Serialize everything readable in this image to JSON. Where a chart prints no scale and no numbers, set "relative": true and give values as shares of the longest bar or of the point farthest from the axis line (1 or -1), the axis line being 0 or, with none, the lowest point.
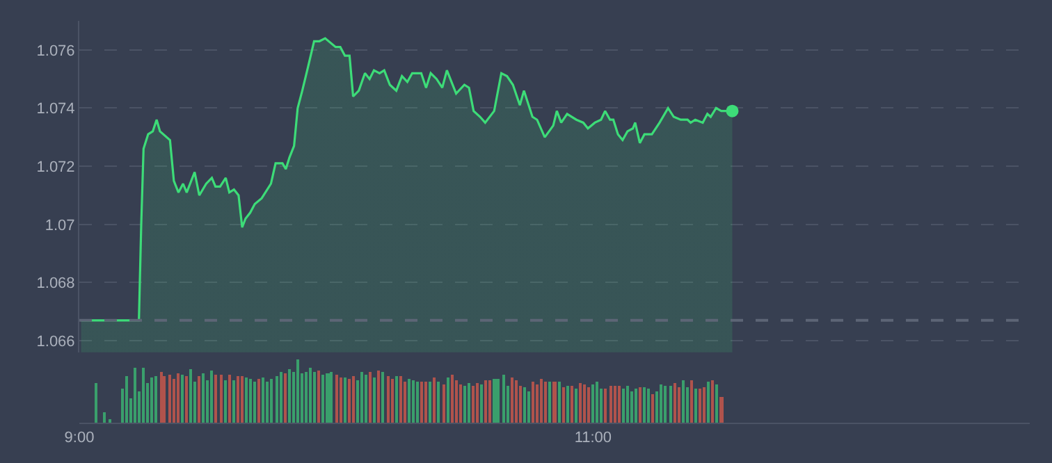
{
  "chart_data": [
    {
      "type": "area",
      "xlim": [
        9,
        12.7
      ],
      "ylim": [
        1.0656,
        1.077
      ],
      "yticks": [
        1.066,
        1.068,
        1.07,
        1.072,
        1.074,
        1.076
      ],
      "grid": "y",
      "tick_labels": "y",
      "ref_lines": [
        {
          "axis": "y",
          "value": 1.0667,
          "color": "#5d6576",
          "line_style": "dashed"
        }
      ],
      "series": [
        {
          "type": "area",
          "color": "#3ddc78",
          "x": [
            9.007,
            9.232,
            9.241,
            9.25,
            9.268,
            9.286,
            9.301,
            9.314,
            9.353,
            9.368,
            9.386,
            9.404,
            9.418,
            9.449,
            9.467,
            9.494,
            9.516,
            9.53,
            9.548,
            9.57,
            9.584,
            9.602,
            9.62,
            9.634,
            9.647,
            9.665,
            9.683,
            9.71,
            9.746,
            9.764,
            9.791,
            9.804,
            9.818,
            9.836,
            9.85,
            9.868,
            9.89,
            9.914,
            9.935,
            9.957,
            9.998,
            10.016,
            10.034,
            10.052,
            10.066,
            10.088,
            10.112,
            10.13,
            10.147,
            10.169,
            10.187,
            10.209,
            10.234,
            10.256,
            10.277,
            10.296,
            10.331,
            10.35,
            10.368,
            10.391,
            10.413,
            10.431,
            10.467,
            10.499,
            10.517,
            10.535,
            10.56,
            10.58,
            10.615,
            10.643,
            10.665,
            10.688,
            10.715,
            10.731,
            10.764,
            10.782,
            10.812,
            10.845,
            10.859,
            10.876,
            10.899,
            10.935,
            10.962,
            10.98,
            11.007,
            11.031,
            11.047,
            11.066,
            11.079,
            11.097,
            11.115,
            11.134,
            11.155,
            11.164,
            11.182,
            11.2,
            11.229,
            11.259,
            11.292,
            11.314,
            11.341,
            11.368,
            11.38,
            11.398,
            11.427,
            11.445,
            11.458,
            11.479,
            11.499,
            11.542
          ],
          "values": [
            1.0667,
            1.0667,
            1.07,
            1.0726,
            1.0731,
            1.0732,
            1.0736,
            1.0732,
            1.0729,
            1.0715,
            1.0711,
            1.0714,
            1.0711,
            1.0718,
            1.071,
            1.0714,
            1.0716,
            1.0713,
            1.0713,
            1.0716,
            1.0711,
            1.0712,
            1.071,
            1.0699,
            1.0702,
            1.0704,
            1.0707,
            1.0709,
            1.0714,
            1.0721,
            1.0721,
            1.0719,
            1.0723,
            1.0727,
            1.074,
            1.0746,
            1.0754,
            1.0763,
            1.0763,
            1.0764,
            1.0761,
            1.0761,
            1.0758,
            1.0758,
            1.0744,
            1.0746,
            1.0752,
            1.075,
            1.0753,
            1.0752,
            1.0753,
            1.0748,
            1.0746,
            1.0751,
            1.0749,
            1.0752,
            1.0752,
            1.0747,
            1.0752,
            1.075,
            1.0747,
            1.0753,
            1.0745,
            1.0748,
            1.0747,
            1.0739,
            1.0737,
            1.0735,
            1.0739,
            1.0752,
            1.0751,
            1.0748,
            1.0741,
            1.0746,
            1.0737,
            1.0736,
            1.073,
            1.0734,
            1.0739,
            1.0735,
            1.0738,
            1.0736,
            1.0735,
            1.0733,
            1.0735,
            1.0736,
            1.0739,
            1.0736,
            1.0736,
            1.0731,
            1.0729,
            1.0732,
            1.0733,
            1.0735,
            1.0728,
            1.0731,
            1.0731,
            1.0735,
            1.074,
            1.0737,
            1.0736,
            1.0736,
            1.0735,
            1.0736,
            1.0735,
            1.0738,
            1.0737,
            1.074,
            1.0739,
            1.0739
          ]
        },
        {
          "type": "scatter",
          "color": "#3ddc78",
          "marker": "circle",
          "x": [
            11.542
          ],
          "values": [
            1.0739
          ]
        }
      ]
    },
    {
      "type": "bar",
      "relative": true,
      "xlim": [
        9,
        12.7
      ],
      "xticks": [
        {
          "value": 9,
          "label": "9:00"
        },
        {
          "value": 11,
          "label": "11:00"
        }
      ],
      "tick_labels": "x",
      "x": [
        9.067,
        9.1,
        9.117,
        9.167,
        9.183,
        9.2,
        9.217,
        9.233,
        9.25,
        9.267,
        9.283,
        9.3,
        9.317,
        9.333,
        9.35,
        9.367,
        9.383,
        9.4,
        9.417,
        9.433,
        9.45,
        9.467,
        9.483,
        9.5,
        9.517,
        9.533,
        9.55,
        9.567,
        9.583,
        9.6,
        9.617,
        9.633,
        9.65,
        9.667,
        9.683,
        9.7,
        9.717,
        9.733,
        9.75,
        9.767,
        9.783,
        9.8,
        9.817,
        9.833,
        9.85,
        9.867,
        9.883,
        9.9,
        9.917,
        9.933,
        9.95,
        9.967,
        9.983,
        10,
        10.017,
        10.033,
        10.05,
        10.067,
        10.083,
        10.1,
        10.117,
        10.133,
        10.15,
        10.167,
        10.183,
        10.2,
        10.217,
        10.233,
        10.25,
        10.267,
        10.283,
        10.3,
        10.317,
        10.333,
        10.35,
        10.367,
        10.383,
        10.4,
        10.417,
        10.433,
        10.45,
        10.467,
        10.483,
        10.5,
        10.517,
        10.533,
        10.55,
        10.567,
        10.583,
        10.6,
        10.617,
        10.633,
        10.65,
        10.667,
        10.683,
        10.7,
        10.717,
        10.733,
        10.75,
        10.767,
        10.783,
        10.8,
        10.817,
        10.833,
        10.85,
        10.867,
        10.883,
        10.9,
        10.917,
        10.933,
        10.95,
        10.967,
        10.983,
        11,
        11.017,
        11.033,
        11.05,
        11.067,
        11.083,
        11.1,
        11.117,
        11.133,
        11.15,
        11.167,
        11.183,
        11.2,
        11.217,
        11.233,
        11.25,
        11.267,
        11.283,
        11.3,
        11.317,
        11.333,
        11.35,
        11.367,
        11.383,
        11.4,
        11.417,
        11.433,
        11.45,
        11.467,
        11.483,
        11.5
      ],
      "values": [
        0.64,
        0.17,
        0.07,
        0.54,
        0.74,
        0.38,
        0.88,
        0.5,
        0.88,
        0.64,
        0.72,
        0.74,
        0.82,
        0.74,
        0.76,
        0.7,
        0.78,
        0.76,
        0.74,
        0.86,
        0.66,
        0.74,
        0.78,
        0.68,
        0.84,
        0.76,
        0.76,
        0.68,
        0.76,
        0.68,
        0.74,
        0.74,
        0.72,
        0.7,
        0.66,
        0.7,
        0.72,
        0.66,
        0.7,
        0.74,
        0.82,
        0.78,
        0.86,
        0.8,
        1.0,
        0.78,
        0.82,
        0.88,
        0.82,
        0.84,
        0.76,
        0.78,
        0.8,
        0.76,
        0.72,
        0.72,
        0.7,
        0.74,
        0.68,
        0.82,
        0.76,
        0.8,
        0.72,
        0.84,
        0.8,
        0.74,
        0.7,
        0.74,
        0.74,
        0.66,
        0.7,
        0.68,
        0.66,
        0.66,
        0.66,
        0.66,
        0.72,
        0.66,
        0.62,
        0.72,
        0.76,
        0.68,
        0.62,
        0.6,
        0.64,
        0.58,
        0.64,
        0.62,
        0.68,
        0.68,
        0.7,
        0.7,
        0.76,
        0.6,
        0.72,
        0.68,
        0.58,
        0.56,
        0.5,
        0.66,
        0.62,
        0.7,
        0.66,
        0.66,
        0.66,
        0.66,
        0.56,
        0.58,
        0.6,
        0.54,
        0.64,
        0.62,
        0.56,
        0.62,
        0.66,
        0.54,
        0.54,
        0.6,
        0.6,
        0.6,
        0.54,
        0.58,
        0.5,
        0.54,
        0.56,
        0.56,
        0.54,
        0.46,
        0.5,
        0.62,
        0.58,
        0.6,
        0.64,
        0.56,
        0.68,
        0.56,
        0.68,
        0.54,
        0.54,
        0.56,
        0.66,
        0.68,
        0.62,
        0.42
      ],
      "colors": [
        "#3a9f6c",
        "#3a9f6c",
        "#3a9f6c",
        "#3a9f6c",
        "#3a9f6c",
        "#3a9f6c",
        "#3a9f6c",
        "#3a9f6c",
        "#3a9f6c",
        "#3a9f6c",
        "#3a9f6c",
        "#3a9f6c",
        "#b0534c",
        "#b0534c",
        "#b0534c",
        "#b0534c",
        "#b0534c",
        "#3a9f6c",
        "#b0534c",
        "#3a9f6c",
        "#3a9f6c",
        "#b0534c",
        "#3a9f6c",
        "#3a9f6c",
        "#3a9f6c",
        "#b0534c",
        "#b0534c",
        "#3a9f6c",
        "#b0534c",
        "#3a9f6c",
        "#b0534c",
        "#b0534c",
        "#3a9f6c",
        "#3a9f6c",
        "#3a9f6c",
        "#b0534c",
        "#3a9f6c",
        "#3a9f6c",
        "#3a9f6c",
        "#3a9f6c",
        "#3a9f6c",
        "#b0534c",
        "#3a9f6c",
        "#3a9f6c",
        "#3a9f6c",
        "#3a9f6c",
        "#3a9f6c",
        "#3a9f6c",
        "#3a9f6c",
        "#b0534c",
        "#3a9f6c",
        "#3a9f6c",
        "#3a9f6c",
        "#b0534c",
        "#b0534c",
        "#3a9f6c",
        "#b0534c",
        "#b0534c",
        "#3a9f6c",
        "#3a9f6c",
        "#3a9f6c",
        "#b0534c",
        "#3a9f6c",
        "#b0534c",
        "#3a9f6c",
        "#b0534c",
        "#b0534c",
        "#3a9f6c",
        "#b0534c",
        "#b0534c",
        "#3a9f6c",
        "#3a9f6c",
        "#3a9f6c",
        "#b0534c",
        "#b0534c",
        "#3a9f6c",
        "#b0534c",
        "#3a9f6c",
        "#b0534c",
        "#3a9f6c",
        "#b0534c",
        "#b0534c",
        "#b0534c",
        "#3a9f6c",
        "#3a9f6c",
        "#b0534c",
        "#b0534c",
        "#3a9f6c",
        "#b0534c",
        "#b0534c",
        "#3a9f6c",
        "#3a9f6c",
        "#3a9f6c",
        "#3a9f6c",
        "#b0534c",
        "#b0534c",
        "#b0534c",
        "#3a9f6c",
        "#3a9f6c",
        "#b0534c",
        "#b0534c",
        "#b0534c",
        "#b0534c",
        "#3a9f6c",
        "#b0534c",
        "#3a9f6c",
        "#b0534c",
        "#3a9f6c",
        "#b0534c",
        "#3a9f6c",
        "#b0534c",
        "#b0534c",
        "#b0534c",
        "#3a9f6c",
        "#3a9f6c",
        "#3a9f6c",
        "#b0534c",
        "#b0534c",
        "#b0534c",
        "#b0534c",
        "#3a9f6c",
        "#3a9f6c",
        "#3a9f6c",
        "#3a9f6c",
        "#b0534c",
        "#3a9f6c",
        "#3a9f6c",
        "#b0534c",
        "#3a9f6c",
        "#3a9f6c",
        "#3a9f6c",
        "#3a9f6c",
        "#b0534c",
        "#b0534c",
        "#3a9f6c",
        "#3a9f6c",
        "#b0534c",
        "#3a9f6c",
        "#b0534c",
        "#b0534c",
        "#3a9f6c",
        "#b0534c",
        "#3a9f6c",
        "#b0534c"
      ]
    }
  ]
}
